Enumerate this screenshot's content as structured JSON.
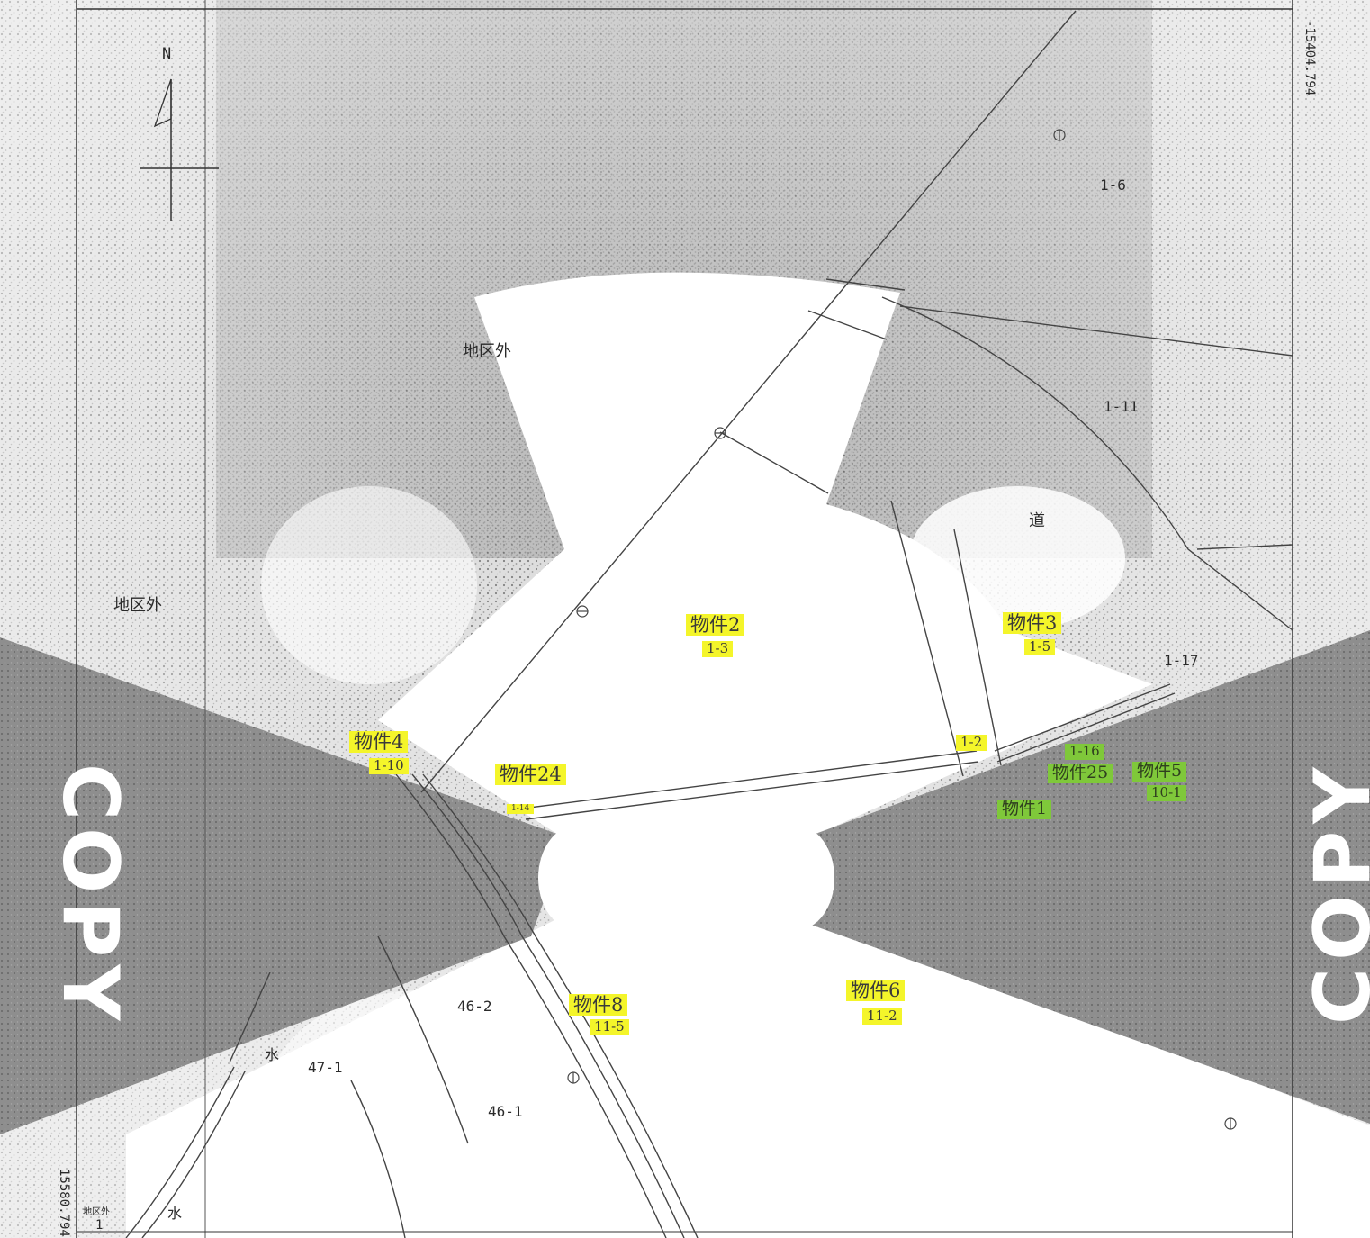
{
  "north_label": "N",
  "coord_right": "-15404.794",
  "coord_bottom_left": "15580.794",
  "watermark": "COPY",
  "outside_district": "地区外",
  "outside_district_small": "地区外",
  "road": "道",
  "water": "水",
  "parcels": {
    "p1_6": "1-6",
    "p1_11": "1-11",
    "p1_17": "1-17",
    "p46_2": "46-2",
    "p47_1": "47-1",
    "p46_1": "46-1",
    "p1_small": "1"
  },
  "properties": [
    {
      "name": "物件2",
      "parcel": "1-3"
    },
    {
      "name": "物件3",
      "parcel": "1-5"
    },
    {
      "name": "物件4",
      "parcel": "1-10"
    },
    {
      "name": "物件24",
      "parcel": "1-14"
    },
    {
      "name": "物件8",
      "parcel": "11-5"
    },
    {
      "name": "物件6",
      "parcel": "11-2"
    },
    {
      "name": "物件25",
      "parcel": "1-16"
    },
    {
      "name": "物件5",
      "parcel": "10-1"
    },
    {
      "name": "物件1",
      "parcel": "1-2"
    }
  ],
  "colors": {
    "highlight": "#f4f52a",
    "highlight_green": "#7fc83a",
    "watermark_band": "#8a8a8a"
  }
}
